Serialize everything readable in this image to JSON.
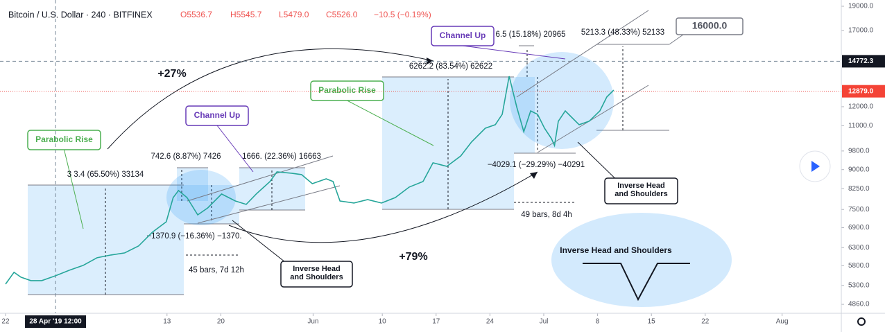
{
  "header": {
    "symbol": "Bitcoin / U.S. Dollar · 240 · BITFINEX",
    "open": "O5536.7",
    "high": "H5545.7",
    "low": "L5479.0",
    "close": "C5526.0",
    "change": "−10.5 (−0.19%)"
  },
  "chart_data": {
    "type": "line",
    "color": "#26a69a",
    "log_scale": true,
    "x": [
      0,
      1.1,
      2.0,
      3.3,
      4.7,
      6.5,
      8.3,
      10.1,
      11.9,
      13.7,
      15.5,
      17.3,
      19.1,
      20.9,
      21.8,
      22.5,
      23.6,
      25.0,
      26.3,
      28.1,
      29.9,
      31.3,
      32.6,
      34.4,
      35.3,
      37.2,
      38.5,
      39.9,
      41.7,
      42.6,
      43.5,
      45.3,
      47.1,
      48.9,
      50.7,
      52.5,
      54.3,
      55.6,
      57.4,
      59.2,
      60.6,
      62.4,
      63.7,
      64.6,
      65.5,
      66.5,
      67.4,
      68.3,
      69.2,
      70.1,
      71.0,
      71.4,
      71.9,
      72.8,
      73.7,
      74.6,
      75.9,
      77.3,
      78.2,
      79.1
    ],
    "values": [
      5331,
      5627,
      5503,
      5416,
      5416,
      5538,
      5680,
      5807,
      6013,
      6090,
      6148,
      6346,
      6760,
      7090,
      7922,
      8178,
      7922,
      7318,
      7554,
      8049,
      7797,
      7675,
      8049,
      8522,
      8907,
      8852,
      8796,
      8440,
      8629,
      8522,
      7797,
      7724,
      7847,
      7724,
      7922,
      8308,
      8522,
      9283,
      9135,
      9581,
      10209,
      10876,
      11052,
      11589,
      13794,
      11960,
      10706,
      11773,
      11589,
      10876,
      10371,
      10049,
      11228,
      11773,
      11406,
      11052,
      11228,
      11773,
      12545,
      12948
    ],
    "xlim": [
      -0.72,
      108.7
    ],
    "xticks": [
      {
        "value": 0,
        "label": "22"
      },
      {
        "value": 21,
        "label": "13"
      },
      {
        "value": 28,
        "label": "20"
      },
      {
        "value": 40,
        "label": "Jun"
      },
      {
        "value": 49,
        "label": "10"
      },
      {
        "value": 56,
        "label": "17"
      },
      {
        "value": 63,
        "label": "24"
      },
      {
        "value": 70,
        "label": "Jul"
      },
      {
        "value": 77,
        "label": "8"
      },
      {
        "value": 84,
        "label": "15"
      },
      {
        "value": 91,
        "label": "22"
      },
      {
        "value": 101,
        "label": "Aug"
      }
    ],
    "ylim": [
      4665,
      19550
    ],
    "yticks": [
      {
        "value": 4860,
        "label": "4860.0"
      },
      {
        "value": 5300,
        "label": "5300.0"
      },
      {
        "value": 5800,
        "label": "5800.0"
      },
      {
        "value": 6300,
        "label": "6300.0"
      },
      {
        "value": 6900,
        "label": "6900.0"
      },
      {
        "value": 7500,
        "label": "7500.0"
      },
      {
        "value": 8250,
        "label": "8250.0"
      },
      {
        "value": 9000,
        "label": "9000.0"
      },
      {
        "value": 9800,
        "label": "9800.0"
      },
      {
        "value": 11000,
        "label": "11000.0"
      },
      {
        "value": 12000,
        "label": "12000.0"
      },
      {
        "value": 17000,
        "label": "17000.0"
      },
      {
        "value": 19000,
        "label": "19000.0"
      }
    ],
    "crosshair": {
      "x": {
        "value": 6.5,
        "label": "28 Apr '19  12:00"
      },
      "y": {
        "value": 14772.3,
        "label": "14772.3"
      }
    },
    "last_price": {
      "value": 12879,
      "label": "12879.0"
    },
    "annotations": {
      "gain_1": "+27%",
      "gain_2": "+79%",
      "parabolic_1": "Parabolic Rise",
      "parabolic_2": "Parabolic Rise",
      "channel_1": "Channel Up",
      "channel_2": "Channel Up",
      "ihs_1": [
        "Inverse Head",
        "and Shoulders"
      ],
      "ihs_2": [
        "Inverse Head",
        "and Shoulders"
      ],
      "ihs_3": "Inverse Head and Shoulders",
      "target": "16000.0",
      "measure_1": "3 3.4 (65.50%) 33134",
      "measure_2": "742.6 (8.87%) 7426",
      "measure_3": "1666.  (22.36%) 16663",
      "measure_4": "−1370.9 (−16.36%) −1370.",
      "measure_5": "45 bars, 7d 12h",
      "measure_6": "6262.2 (83.54%) 62622",
      "measure_7": "6.5 (15.18%) 20965",
      "measure_8": "5213.3 (48.33%) 52133",
      "measure_9": "−4029.1 (−29.29%) −40291",
      "measure_10": "49 bars, 8d 4h"
    }
  }
}
